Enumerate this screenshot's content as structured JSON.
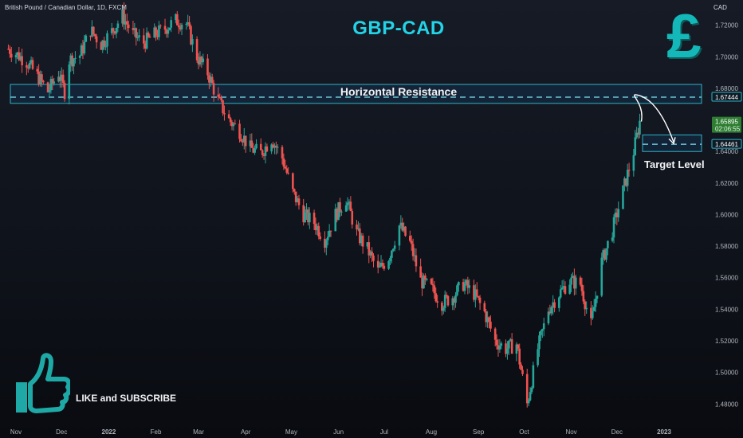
{
  "header": {
    "symbol_text": "British Pound / Canadian Dollar, 1D, FXCM",
    "currency": "CAD",
    "title": "GBP-CAD",
    "pound_sign": "£"
  },
  "annotations": {
    "resistance_label": "Horizontal Resistance",
    "target_label": "Target Level",
    "like_text": "LIKE and SUBSCRIBE",
    "thumb_icon": "thumbs-up-icon"
  },
  "colors": {
    "up": "#26a69a",
    "down": "#ef5350",
    "zone_stroke": "#2fb3c6",
    "zone_fill": "#14304a",
    "accent": "#23d3e6",
    "price_tag_green": "#2e7d32",
    "axis_text": "#b2b5be"
  },
  "chart_data": {
    "type": "line",
    "title": "GBP-CAD",
    "xlabel": "",
    "ylabel": "",
    "y_unit": "CAD",
    "ylim": [
      1.466,
      1.736
    ],
    "y_ticks": [
      1.72,
      1.7,
      1.68,
      1.66,
      1.64,
      1.62,
      1.6,
      1.58,
      1.56,
      1.54,
      1.52,
      1.5,
      1.48
    ],
    "y_tick_labels": [
      "1.72000",
      "1.70000",
      "1.68000",
      "1.66000",
      "1.64000",
      "1.62000",
      "1.60000",
      "1.58000",
      "1.56000",
      "1.54000",
      "1.52000",
      "1.50000",
      "1.48000"
    ],
    "x_ticks": [
      "Nov",
      "Dec",
      "2022",
      "Feb",
      "Mar",
      "Apr",
      "May",
      "Jun",
      "Jul",
      "Aug",
      "Sep",
      "Oct",
      "Nov",
      "Dec",
      "2023"
    ],
    "x_tick_dates": [
      "2021-11-01",
      "2021-12-01",
      "2022-01-01",
      "2022-02-01",
      "2022-03-01",
      "2022-04-01",
      "2022-05-01",
      "2022-06-01",
      "2022-07-01",
      "2022-08-01",
      "2022-09-01",
      "2022-10-01",
      "2022-11-01",
      "2022-12-01",
      "2023-01-01"
    ],
    "series": [
      {
        "values_kind": "approximate daily close (read from candles)",
        "points": [
          [
            "2021-10-27",
            1.705
          ],
          [
            "2021-11-01",
            1.702
          ],
          [
            "2021-11-08",
            1.697
          ],
          [
            "2021-11-15",
            1.688
          ],
          [
            "2021-11-22",
            1.678
          ],
          [
            "2021-11-29",
            1.69
          ],
          [
            "2021-12-03",
            1.678
          ],
          [
            "2021-12-06",
            1.698
          ],
          [
            "2021-12-13",
            1.701
          ],
          [
            "2021-12-20",
            1.717
          ],
          [
            "2021-12-27",
            1.708
          ],
          [
            "2022-01-03",
            1.716
          ],
          [
            "2022-01-10",
            1.726
          ],
          [
            "2022-01-17",
            1.714
          ],
          [
            "2022-01-24",
            1.709
          ],
          [
            "2022-01-31",
            1.714
          ],
          [
            "2022-02-07",
            1.718
          ],
          [
            "2022-02-14",
            1.723
          ],
          [
            "2022-02-21",
            1.721
          ],
          [
            "2022-02-28",
            1.7
          ],
          [
            "2022-03-07",
            1.69
          ],
          [
            "2022-03-14",
            1.672
          ],
          [
            "2022-03-21",
            1.66
          ],
          [
            "2022-03-28",
            1.653
          ],
          [
            "2022-04-04",
            1.642
          ],
          [
            "2022-04-11",
            1.639
          ],
          [
            "2022-04-18",
            1.648
          ],
          [
            "2022-04-25",
            1.636
          ],
          [
            "2022-05-02",
            1.614
          ],
          [
            "2022-05-09",
            1.6
          ],
          [
            "2022-05-16",
            1.595
          ],
          [
            "2022-05-23",
            1.584
          ],
          [
            "2022-05-30",
            1.6
          ],
          [
            "2022-06-06",
            1.61
          ],
          [
            "2022-06-13",
            1.588
          ],
          [
            "2022-06-20",
            1.578
          ],
          [
            "2022-06-27",
            1.564
          ],
          [
            "2022-07-04",
            1.573
          ],
          [
            "2022-07-11",
            1.593
          ],
          [
            "2022-07-18",
            1.582
          ],
          [
            "2022-07-25",
            1.558
          ],
          [
            "2022-08-01",
            1.553
          ],
          [
            "2022-08-08",
            1.544
          ],
          [
            "2022-08-15",
            1.548
          ],
          [
            "2022-08-22",
            1.556
          ],
          [
            "2022-08-29",
            1.55
          ],
          [
            "2022-09-05",
            1.538
          ],
          [
            "2022-09-12",
            1.52
          ],
          [
            "2022-09-19",
            1.515
          ],
          [
            "2022-09-26",
            1.518
          ],
          [
            "2022-10-03",
            1.48
          ],
          [
            "2022-10-10",
            1.515
          ],
          [
            "2022-10-17",
            1.54
          ],
          [
            "2022-10-24",
            1.55
          ],
          [
            "2022-10-31",
            1.558
          ],
          [
            "2022-11-07",
            1.556
          ],
          [
            "2022-11-14",
            1.53
          ],
          [
            "2022-11-21",
            1.57
          ],
          [
            "2022-11-28",
            1.59
          ],
          [
            "2022-12-05",
            1.615
          ],
          [
            "2022-12-12",
            1.64
          ],
          [
            "2022-12-16",
            1.659
          ]
        ]
      }
    ],
    "horizontal_lines": [
      {
        "label": "Horizontal Resistance",
        "value": 1.67444,
        "zone": [
          1.6705,
          1.6825
        ]
      },
      {
        "label": "Target Level",
        "value": 1.64461,
        "zone": [
          1.64,
          1.6505
        ]
      }
    ],
    "price_tags": [
      {
        "value_text": "1.67444",
        "style": "outline"
      },
      {
        "value_text": "1.65895",
        "timer_text": "02:06:55",
        "style": "green"
      },
      {
        "value_text": "1.64461",
        "style": "outline"
      }
    ],
    "projection": {
      "from": 1.659,
      "peak": 1.676,
      "to": 1.645
    },
    "grid": false,
    "legend": "none"
  }
}
